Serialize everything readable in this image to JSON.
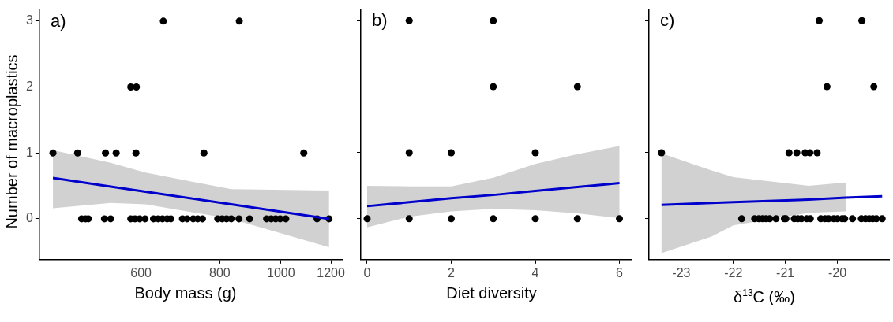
{
  "chart_data": [
    {
      "type": "scatter",
      "title": "a)",
      "xlabel": "Body mass (g)",
      "ylabel": "Number of macroplastics",
      "log": "x",
      "xlim": [
        414,
        1253
      ],
      "xticks": [
        600,
        800,
        1000,
        1200
      ],
      "ylim": [
        -0.62,
        3.17
      ],
      "yticks": [
        0,
        1,
        2,
        3
      ],
      "grid": false,
      "legend": false,
      "series": [
        {
          "color": "#000000",
          "marker": "circle",
          "x": [
            651,
            859,
            578,
            590,
            435,
            476,
            527,
            548,
            589,
            755,
            1087,
            483,
            490,
            495,
            525,
            537,
            578,
            587,
            597,
            609,
            628,
            639,
            649,
            660,
            669,
            698,
            710,
            726,
            738,
            751,
            794,
            807,
            820,
            834,
            858,
            892,
            949,
            965,
            981,
            997,
            1018,
            1141,
            1192
          ],
          "values": [
            3,
            3,
            2,
            2,
            1,
            1,
            1,
            1,
            1,
            1,
            1,
            0,
            0,
            0,
            0,
            0,
            0,
            0,
            0,
            0,
            0,
            0,
            0,
            0,
            0,
            0,
            0,
            0,
            0,
            0,
            0,
            0,
            0,
            0,
            0,
            0,
            0,
            0,
            0,
            0,
            0,
            0,
            0
          ]
        },
        {
          "type": "line",
          "color": "#0000cc",
          "marker": "none",
          "x": [
            435,
            537,
            610,
            834,
            1192
          ],
          "values": [
            0.62,
            0.49,
            0.41,
            0.22,
            0.0
          ],
          "lower": [
            0.16,
            0.24,
            0.22,
            0.0,
            -0.43
          ],
          "upper": [
            1.04,
            0.85,
            0.7,
            0.45,
            0.43
          ]
        }
      ]
    },
    {
      "type": "scatter",
      "title": "b)",
      "xlabel": "Diet diversity",
      "xlim": [
        -0.15,
        6.3
      ],
      "xticks": [
        0,
        2,
        4,
        6
      ],
      "ylim": [
        -0.62,
        3.17
      ],
      "yticks": [
        0,
        1,
        2,
        3
      ],
      "tick_labels": "x",
      "grid": false,
      "legend": false,
      "series": [
        {
          "color": "#000000",
          "marker": "circle",
          "x": [
            1,
            3,
            3,
            5,
            1,
            2,
            4,
            0,
            1,
            2,
            3,
            4,
            5,
            6
          ],
          "values": [
            3,
            3,
            2,
            2,
            1,
            1,
            1,
            0,
            0,
            0,
            0,
            0,
            0,
            0
          ]
        },
        {
          "type": "line",
          "color": "#0000cc",
          "marker": "none",
          "x": [
            0,
            1,
            2,
            3,
            4,
            5,
            6
          ],
          "values": [
            0.19,
            0.25,
            0.31,
            0.36,
            0.42,
            0.48,
            0.54
          ],
          "lower": [
            -0.13,
            0.03,
            0.11,
            0.15,
            0.13,
            0.08,
            0.01
          ],
          "upper": [
            0.5,
            0.49,
            0.49,
            0.62,
            0.83,
            0.98,
            1.1
          ]
        }
      ]
    },
    {
      "type": "scatter",
      "title": "c)",
      "xlabel": "δ$^{13}$C (‰)",
      "xlim": [
        -23.62,
        -19.0
      ],
      "xticks": [
        -23,
        -22,
        -21,
        -20
      ],
      "ylim": [
        -0.62,
        3.17
      ],
      "yticks": [
        0,
        1,
        2,
        3
      ],
      "tick_labels": "x",
      "grid": false,
      "legend": false,
      "series": [
        {
          "color": "#000000",
          "marker": "circle",
          "x": [
            -20.35,
            -19.53,
            -20.2,
            -19.3,
            -23.38,
            -20.93,
            -20.78,
            -20.62,
            -20.53,
            -20.39,
            -21.84,
            -21.59,
            -21.51,
            -21.44,
            -21.37,
            -21.3,
            -21.18,
            -21.02,
            -20.99,
            -20.83,
            -20.76,
            -20.69,
            -20.59,
            -20.52,
            -20.32,
            -20.24,
            -20.17,
            -20.07,
            -20.0,
            -19.91,
            -19.86,
            -19.71,
            -19.54,
            -19.46,
            -19.39,
            -19.32,
            -19.25,
            -19.14
          ],
          "values": [
            3,
            3,
            2,
            2,
            1,
            1,
            1,
            1,
            1,
            1,
            0,
            0,
            0,
            0,
            0,
            0,
            0,
            0,
            0,
            0,
            0,
            0,
            0,
            0,
            0,
            0,
            0,
            0,
            0,
            0,
            0,
            0,
            0,
            0,
            0,
            0,
            0,
            0
          ]
        },
        {
          "type": "line",
          "color": "#0000cc",
          "marker": "none",
          "x": [
            -23.38,
            -22.42,
            -22.0,
            -20.55,
            -19.84,
            -19.14
          ],
          "values": [
            0.21,
            0.24,
            0.25,
            0.29,
            0.32,
            0.34
          ],
          "lower": [
            -0.52,
            -0.27,
            -0.1,
            0.09,
            0.11,
            null
          ],
          "upper": [
            0.99,
            0.73,
            0.63,
            0.5,
            0.55,
            null
          ]
        }
      ]
    }
  ]
}
